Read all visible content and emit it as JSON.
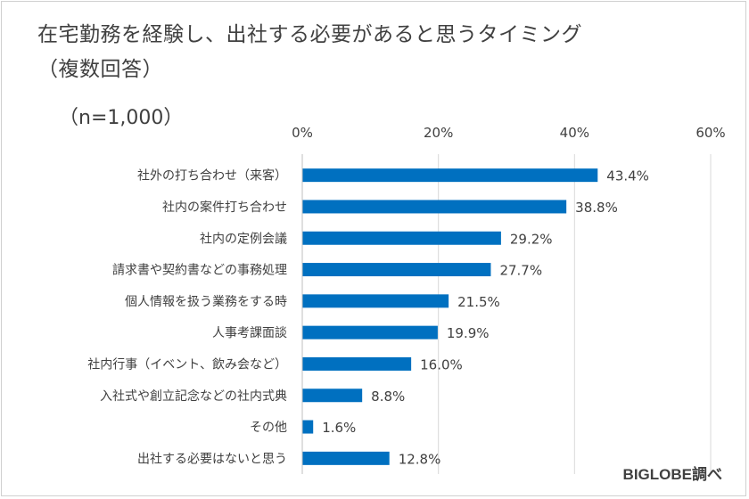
{
  "title_lines": [
    "在宅勤務を経験し、出社する必要があると思うタイミング",
    "（複数回答）"
  ],
  "sample_note": "（n=1,000）",
  "credit": "BIGLOBE調べ",
  "colors": {
    "bar": "#0070c0",
    "grid": "#d9d9d9",
    "text": "#404040"
  },
  "chart_data": {
    "type": "bar",
    "orientation": "horizontal",
    "title": "在宅勤務を経験し、出社する必要があると思うタイミング（複数回答）",
    "categories": [
      "社外の打ち合わせ（来客）",
      "社内の案件打ち合わせ",
      "社内の定例会議",
      "請求書や契約書などの事務処理",
      "個人情報を扱う業務をする時",
      "人事考課面談",
      "社内行事（イベント、飲み会など）",
      "入社式や創立記念などの社内式典",
      "その他",
      "出社する必要はないと思う"
    ],
    "values": [
      43.4,
      38.8,
      29.2,
      27.7,
      21.5,
      19.9,
      16.0,
      8.8,
      1.6,
      12.8
    ],
    "value_labels": [
      "43.4%",
      "38.8%",
      "29.2%",
      "27.7%",
      "21.5%",
      "19.9%",
      "16.0%",
      "8.8%",
      "1.6%",
      "12.8%"
    ],
    "xlim": [
      0,
      60
    ],
    "xticks": [
      0,
      20,
      40,
      60
    ],
    "xtick_labels": [
      "0%",
      "20%",
      "40%",
      "60%"
    ],
    "axis_position": "top",
    "grid": true,
    "legend": "none"
  }
}
